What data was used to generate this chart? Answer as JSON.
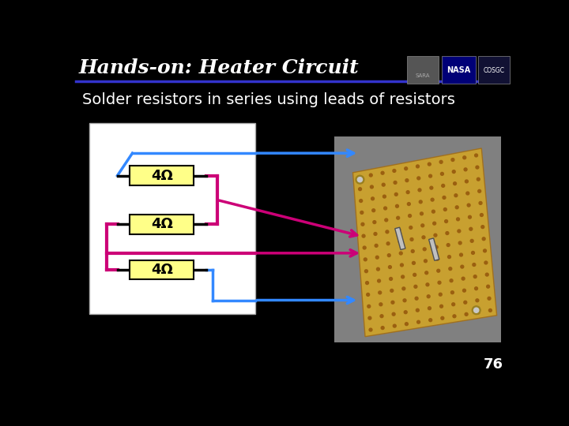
{
  "title": "Hands-on: Heater Circuit",
  "subtitle": "Solder resistors in series using leads of resistors",
  "background_color": "#000000",
  "title_color": "#ffffff",
  "subtitle_color": "#ffffff",
  "title_fontsize": 18,
  "subtitle_fontsize": 14,
  "page_number": "76",
  "resistor_labels": [
    "4Ω",
    "4Ω",
    "4Ω"
  ],
  "resistor_color": "#ffff88",
  "resistor_border": "#000000",
  "wire_blue": "#3388ff",
  "wire_pink": "#cc0077",
  "divider_color": "#3333cc",
  "circuit_bg": "#ffffff",
  "circuit_border": "#aaaaaa",
  "pcb_color": "#c8a030",
  "pcb_dot": "#8B5A00",
  "pcb_resistor_color": "#b0b0b0"
}
